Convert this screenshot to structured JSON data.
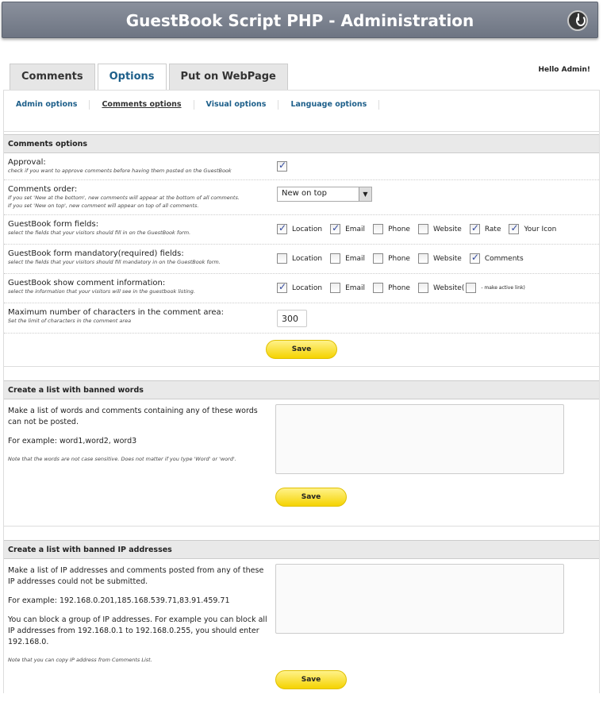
{
  "header": {
    "title": "GuestBook Script PHP - Administration",
    "power_icon": "power-icon"
  },
  "tabs": [
    {
      "label": "Comments"
    },
    {
      "label": "Options"
    },
    {
      "label": "Put on WebPage"
    }
  ],
  "greeting": "Hello Admin!",
  "subnav": [
    {
      "label": "Admin options"
    },
    {
      "label": "Comments options"
    },
    {
      "label": "Visual options"
    },
    {
      "label": "Language options"
    }
  ],
  "comments_options": {
    "title": "Comments options",
    "approval": {
      "label": "Approval:",
      "hint": "check if you want to approve comments before having them posted on the GuestBook",
      "checked": true
    },
    "order": {
      "label": "Comments order:",
      "hint1": "If you set 'New at the bottom', new comments will appear at the bottom of all comments.",
      "hint2": "If you set 'New on top', new comment will appear on top of all comments.",
      "value": "New on top"
    },
    "form_fields": {
      "label": "GuestBook form fields:",
      "hint": "select the fields that your visitors should fill in on the GuestBook form.",
      "options": [
        {
          "label": "Location",
          "checked": true
        },
        {
          "label": "Email",
          "checked": true
        },
        {
          "label": "Phone",
          "checked": false
        },
        {
          "label": "Website",
          "checked": false
        },
        {
          "label": "Rate",
          "checked": true
        },
        {
          "label": "Your Icon",
          "checked": true
        }
      ]
    },
    "mandatory": {
      "label": "GuestBook form mandatory(required) fields:",
      "hint": "select the fields that your visitors should fill mandatory in on the GuestBook form.",
      "options": [
        {
          "label": "Location",
          "checked": false
        },
        {
          "label": "Email",
          "checked": false
        },
        {
          "label": "Phone",
          "checked": false
        },
        {
          "label": "Website",
          "checked": false
        },
        {
          "label": "Comments",
          "checked": true
        }
      ]
    },
    "show_info": {
      "label": "GuestBook show comment information:",
      "hint": "select the information that your visitors will see in the guestbook listing.",
      "options": [
        {
          "label": "Location",
          "checked": true
        },
        {
          "label": "Email",
          "checked": false
        },
        {
          "label": "Phone",
          "checked": false
        },
        {
          "label": "Website(",
          "checked": false
        }
      ],
      "active_link": {
        "label": "- make active link)",
        "checked": false
      }
    },
    "max_chars": {
      "label": "Maximum number of characters in the comment area:",
      "hint": "Set the limit of characters in the comment area",
      "value": "300"
    },
    "save": "Save"
  },
  "banned_words": {
    "title": "Create a list with banned words",
    "p1": "Make a list of words and comments containing any of these words can not be posted.",
    "p2": "For example: word1,word2, word3",
    "note": "Note that the words are not case sensitive. Does not matter if you type 'Word' or 'word'.",
    "value": "",
    "save": "Save"
  },
  "banned_ips": {
    "title": "Create a list with banned IP addresses",
    "p1": "Make a list of IP addresses and comments posted from any of these IP addresses could not be submitted.",
    "p2": "For example: 192.168.0.201,185.168.539.71,83.91.459.71",
    "p3": "You can block a group of IP addresses. For example you can block all IP addresses from 192.168.0.1 to 192.168.0.255, you should enter 192.168.0.",
    "note": "Note that you can copy IP address from Comments List.",
    "value": "",
    "save": "Save"
  }
}
